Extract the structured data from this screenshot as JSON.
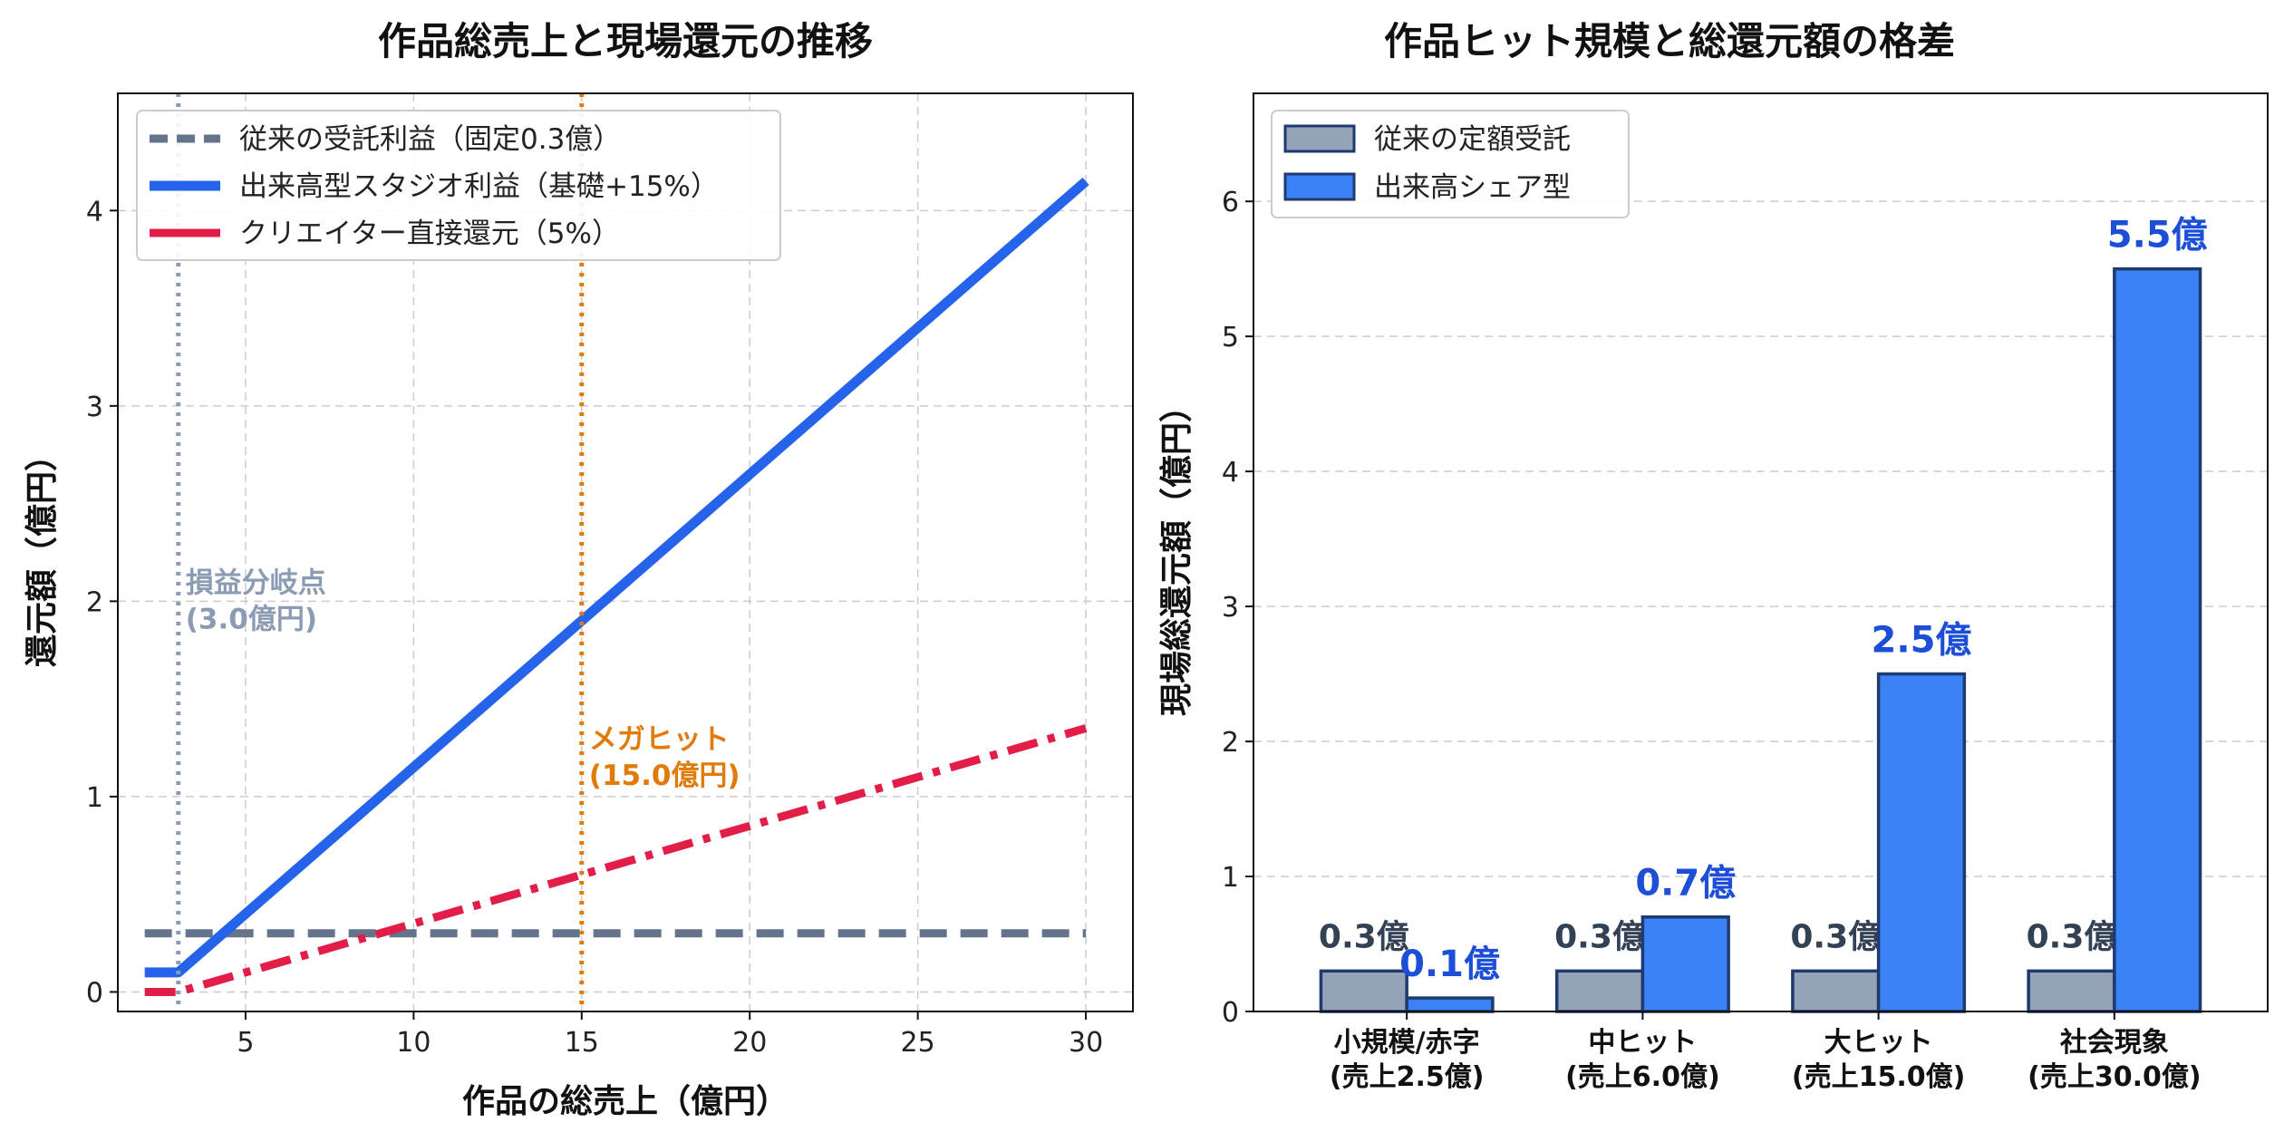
{
  "chart_data": [
    {
      "type": "line",
      "title": "作品総売上と現場還元の推移",
      "xlabel": "作品の総売上（億円）",
      "ylabel": "還元額（億円）",
      "xlim": [
        1.2,
        31.4
      ],
      "ylim": [
        -0.1,
        4.6
      ],
      "xticks": [
        5,
        10,
        15,
        20,
        25,
        30
      ],
      "yticks": [
        0,
        1,
        2,
        3,
        4
      ],
      "grid": true,
      "legend_position": "top-left",
      "series": [
        {
          "name": "従来の受託利益（固定0.3億）",
          "style": "dashed",
          "color": "#64748b",
          "x": [
            2.0,
            30.0
          ],
          "y": [
            0.3,
            0.3
          ]
        },
        {
          "name": "出来高型スタジオ利益（基礎+15%）",
          "style": "solid",
          "color": "#2563eb",
          "x": [
            2.0,
            3.0,
            30.0
          ],
          "y": [
            0.1,
            0.1,
            4.15
          ]
        },
        {
          "name": "クリエイター直接還元（5%）",
          "style": "dashdot",
          "color": "#e11d48",
          "x": [
            2.0,
            3.0,
            30.0
          ],
          "y": [
            0.0,
            0.0,
            1.35
          ]
        }
      ],
      "vlines": [
        {
          "x": 3.0,
          "color": "#8b9bb4",
          "style": "dotted",
          "label": [
            "損益分岐点",
            "(3.0億円)"
          ],
          "label_y": 2.0
        },
        {
          "x": 15.0,
          "color": "#e07b0a",
          "style": "dotted",
          "label": [
            "メガヒット",
            "(15.0億円)"
          ],
          "label_y": 1.2
        }
      ]
    },
    {
      "type": "bar",
      "title": "作品ヒット規模と総還元額の格差",
      "xlabel": "",
      "ylabel": "現場総還元額（億円）",
      "ylim": [
        0,
        6.8
      ],
      "yticks": [
        0,
        1,
        2,
        3,
        4,
        5,
        6
      ],
      "grid": true,
      "legend_position": "top-left",
      "categories": [
        [
          "小規模/赤字",
          "(売上2.5億)"
        ],
        [
          "中ヒット",
          "(売上6.0億)"
        ],
        [
          "大ヒット",
          "(売上15.0億)"
        ],
        [
          "社会現象",
          "(売上30.0億)"
        ]
      ],
      "series": [
        {
          "name": "従来の定額受託",
          "color": "#94a3b8",
          "values": [
            0.3,
            0.3,
            0.3,
            0.3
          ],
          "labels": [
            "0.3億",
            "0.3億",
            "0.3億",
            "0.3億"
          ]
        },
        {
          "name": "出来高シェア型",
          "color": "#3b82f6",
          "values": [
            0.1,
            0.7,
            2.5,
            5.5
          ],
          "labels": [
            "0.1億",
            "0.7億",
            "2.5億",
            "5.5億"
          ]
        }
      ]
    }
  ]
}
